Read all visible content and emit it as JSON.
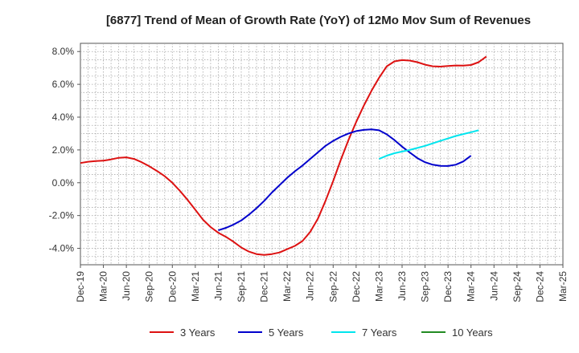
{
  "chart_data": {
    "type": "line",
    "title": "[6877]  Trend of Mean of Growth Rate (YoY) of 12Mo Mov Sum of Revenues",
    "xlabel": "",
    "ylabel": "",
    "x_ticks": [
      "Dec-19",
      "Mar-20",
      "Jun-20",
      "Sep-20",
      "Dec-20",
      "Mar-21",
      "Jun-21",
      "Sep-21",
      "Dec-21",
      "Mar-22",
      "Jun-22",
      "Sep-22",
      "Dec-22",
      "Mar-23",
      "Jun-23",
      "Sep-23",
      "Dec-23",
      "Mar-24",
      "Jun-24",
      "Sep-24",
      "Dec-24",
      "Mar-25"
    ],
    "y_ticks": [
      "8.0%",
      "6.0%",
      "4.0%",
      "2.0%",
      "0.0%",
      "-2.0%",
      "-4.0%"
    ],
    "ylim": [
      -5.0,
      8.5
    ],
    "grid": true,
    "legend_position": "bottom",
    "series": [
      {
        "name": "3 Years",
        "color": "#dd1111",
        "start_index": 0,
        "values": [
          1.2,
          1.28,
          1.32,
          1.35,
          1.42,
          1.52,
          1.55,
          1.45,
          1.25,
          1.0,
          0.72,
          0.4,
          0.0,
          -0.5,
          -1.05,
          -1.65,
          -2.25,
          -2.7,
          -3.05,
          -3.3,
          -3.6,
          -3.95,
          -4.2,
          -4.35,
          -4.4,
          -4.35,
          -4.25,
          -4.05,
          -3.85,
          -3.55,
          -3.0,
          -2.2,
          -1.1,
          0.1,
          1.4,
          2.6,
          3.7,
          4.7,
          5.6,
          6.4,
          7.1,
          7.4,
          7.48,
          7.45,
          7.35,
          7.2,
          7.1,
          7.08,
          7.12,
          7.15,
          7.14,
          7.18,
          7.35,
          7.7
        ]
      },
      {
        "name": "5 Years",
        "color": "#0000cc",
        "start_index": 18,
        "values": [
          -2.9,
          -2.75,
          -2.55,
          -2.3,
          -1.95,
          -1.55,
          -1.1,
          -0.6,
          -0.15,
          0.3,
          0.7,
          1.05,
          1.45,
          1.85,
          2.25,
          2.55,
          2.8,
          3.0,
          3.15,
          3.22,
          3.25,
          3.2,
          2.95,
          2.6,
          2.2,
          1.85,
          1.5,
          1.25,
          1.1,
          1.03,
          1.02,
          1.1,
          1.3,
          1.65
        ]
      },
      {
        "name": "7 Years",
        "color": "#00e5ee",
        "start_index": 39,
        "values": [
          1.45,
          1.65,
          1.8,
          1.9,
          2.0,
          2.12,
          2.25,
          2.4,
          2.55,
          2.7,
          2.85,
          2.97,
          3.08,
          3.2
        ]
      },
      {
        "name": "10 Years",
        "color": "#228b22",
        "start_index": 0,
        "values": []
      }
    ]
  }
}
